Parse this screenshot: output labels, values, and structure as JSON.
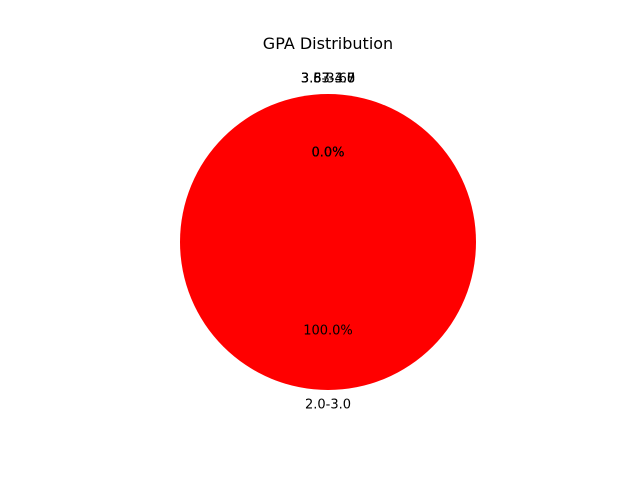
{
  "chart_data": {
    "type": "pie",
    "title": "GPA Distribution",
    "start_angle_deg": 90,
    "direction": "counterclockwise",
    "slices": [
      {
        "label": "3.83-4.0",
        "value": 0,
        "percent_label": "0.0%",
        "color": "#0000ff"
      },
      {
        "label": "3.67-3.8",
        "value": 0,
        "percent_label": "0.0%",
        "color": "#00a000"
      },
      {
        "label": "3.5-3.67",
        "value": 0,
        "percent_label": "0.0%",
        "color": "#ffa500"
      },
      {
        "label": "2.0-3.0",
        "value": 100,
        "percent_label": "100.0%",
        "color": "#ff0000"
      }
    ]
  }
}
